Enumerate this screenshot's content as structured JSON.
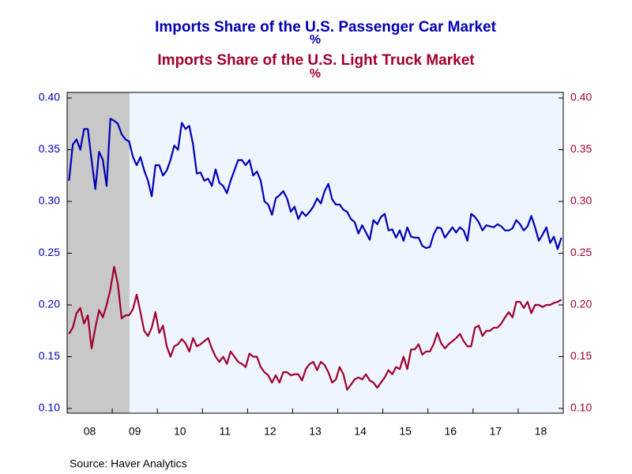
{
  "chart_data": {
    "type": "line",
    "source": "Source:  Haver Analytics",
    "categories": [
      null,
      null,
      null,
      null,
      null,
      null,
      "08",
      null,
      null,
      null,
      null,
      null,
      null,
      null,
      null,
      null,
      null,
      null,
      "09",
      null,
      null,
      null,
      null,
      null,
      null,
      null,
      null,
      null,
      null,
      null,
      "10",
      null,
      null,
      null,
      null,
      null,
      null,
      null,
      null,
      null,
      null,
      null,
      "11",
      null,
      null,
      null,
      null,
      null,
      null,
      null,
      null,
      null,
      null,
      null,
      "12",
      null,
      null,
      null,
      null,
      null,
      null,
      null,
      null,
      null,
      null,
      null,
      "13",
      null,
      null,
      null,
      null,
      null,
      null,
      null,
      null,
      null,
      null,
      null,
      "14",
      null,
      null,
      null,
      null,
      null,
      null,
      null,
      null,
      null,
      null,
      null,
      "15",
      null,
      null,
      null,
      null,
      null,
      null,
      null,
      null,
      null,
      null,
      null,
      "16",
      null,
      null,
      null,
      null,
      null,
      null,
      null,
      null,
      null,
      null,
      null,
      "17",
      null,
      null,
      null,
      null,
      null,
      null,
      null,
      null,
      null,
      null,
      null,
      "18",
      null,
      null,
      null,
      null,
      null
    ],
    "series": [
      {
        "name": "Imports Share of the U.S. Passenger Car Market",
        "unit": "%",
        "color": "#0000b4",
        "axis": "y",
        "values": [
          0.32,
          0.355,
          0.36,
          0.35,
          0.37,
          0.37,
          0.34,
          0.312,
          0.348,
          0.34,
          0.315,
          0.38,
          0.378,
          0.375,
          0.365,
          0.36,
          0.358,
          0.343,
          0.335,
          0.343,
          0.33,
          0.32,
          0.305,
          0.335,
          0.335,
          0.325,
          0.33,
          0.34,
          0.354,
          0.35,
          0.376,
          0.37,
          0.373,
          0.355,
          0.327,
          0.328,
          0.32,
          0.322,
          0.315,
          0.331,
          0.318,
          0.315,
          0.308,
          0.32,
          0.33,
          0.34,
          0.34,
          0.335,
          0.34,
          0.325,
          0.329,
          0.32,
          0.3,
          0.297,
          0.287,
          0.303,
          0.306,
          0.31,
          0.303,
          0.29,
          0.295,
          0.283,
          0.29,
          0.286,
          0.29,
          0.295,
          0.303,
          0.298,
          0.31,
          0.317,
          0.302,
          0.297,
          0.297,
          0.292,
          0.29,
          0.283,
          0.28,
          0.269,
          0.277,
          0.27,
          0.263,
          0.282,
          0.278,
          0.285,
          0.288,
          0.272,
          0.273,
          0.265,
          0.272,
          0.262,
          0.275,
          0.266,
          0.265,
          0.265,
          0.257,
          0.255,
          0.256,
          0.268,
          0.275,
          0.274,
          0.265,
          0.27,
          0.275,
          0.27,
          0.275,
          0.272,
          0.262,
          0.288,
          0.285,
          0.28,
          0.272,
          0.277,
          0.276,
          0.275,
          0.278,
          0.276,
          0.272,
          0.272,
          0.274,
          0.282,
          0.278,
          0.272,
          0.276,
          0.286,
          0.275,
          0.262,
          0.268,
          0.275,
          0.26,
          0.266,
          0.254,
          0.265
        ]
      },
      {
        "name": "Imports Share of the U.S. Light Truck Market",
        "unit": "%",
        "color": "#a0002d",
        "axis": "y2",
        "values": [
          0.172,
          0.178,
          0.192,
          0.197,
          0.182,
          0.19,
          0.158,
          0.178,
          0.195,
          0.188,
          0.2,
          0.215,
          0.237,
          0.22,
          0.187,
          0.19,
          0.19,
          0.196,
          0.21,
          0.193,
          0.175,
          0.17,
          0.178,
          0.193,
          0.173,
          0.18,
          0.16,
          0.15,
          0.16,
          0.162,
          0.167,
          0.163,
          0.155,
          0.168,
          0.16,
          0.162,
          0.165,
          0.168,
          0.158,
          0.15,
          0.145,
          0.15,
          0.143,
          0.155,
          0.15,
          0.145,
          0.143,
          0.14,
          0.153,
          0.15,
          0.15,
          0.14,
          0.135,
          0.132,
          0.125,
          0.132,
          0.125,
          0.135,
          0.135,
          0.132,
          0.133,
          0.133,
          0.127,
          0.138,
          0.143,
          0.145,
          0.137,
          0.145,
          0.142,
          0.135,
          0.125,
          0.128,
          0.14,
          0.133,
          0.118,
          0.123,
          0.128,
          0.13,
          0.128,
          0.133,
          0.127,
          0.125,
          0.12,
          0.125,
          0.13,
          0.137,
          0.133,
          0.14,
          0.138,
          0.15,
          0.138,
          0.157,
          0.157,
          0.162,
          0.152,
          0.155,
          0.155,
          0.162,
          0.173,
          0.163,
          0.158,
          0.162,
          0.165,
          0.168,
          0.172,
          0.165,
          0.16,
          0.16,
          0.178,
          0.18,
          0.17,
          0.175,
          0.175,
          0.178,
          0.178,
          0.182,
          0.188,
          0.193,
          0.188,
          0.203,
          0.203,
          0.197,
          0.203,
          0.192,
          0.2,
          0.2,
          0.198,
          0.2,
          0.2,
          0.202,
          0.203,
          0.205
        ]
      }
    ],
    "ylim": [
      0.1,
      0.4
    ],
    "yticks": [
      {
        "value": 0.1,
        "label": "0.10"
      },
      {
        "value": 0.15,
        "label": "0.15"
      },
      {
        "value": 0.2,
        "label": "0.20"
      },
      {
        "value": 0.25,
        "label": "0.25"
      },
      {
        "value": 0.3,
        "label": "0.30"
      },
      {
        "value": 0.35,
        "label": "0.35"
      },
      {
        "value": 0.4,
        "label": "0.40"
      }
    ],
    "y2lim": [
      0.1,
      0.4
    ],
    "y2ticks": [
      {
        "value": 0.1,
        "label": "0.10"
      },
      {
        "value": 0.15,
        "label": "0.15"
      },
      {
        "value": 0.2,
        "label": "0.20"
      },
      {
        "value": 0.25,
        "label": "0.25"
      },
      {
        "value": 0.3,
        "label": "0.30"
      },
      {
        "value": 0.35,
        "label": "0.35"
      },
      {
        "value": 0.4,
        "label": "0.40"
      }
    ],
    "grid": false
  }
}
